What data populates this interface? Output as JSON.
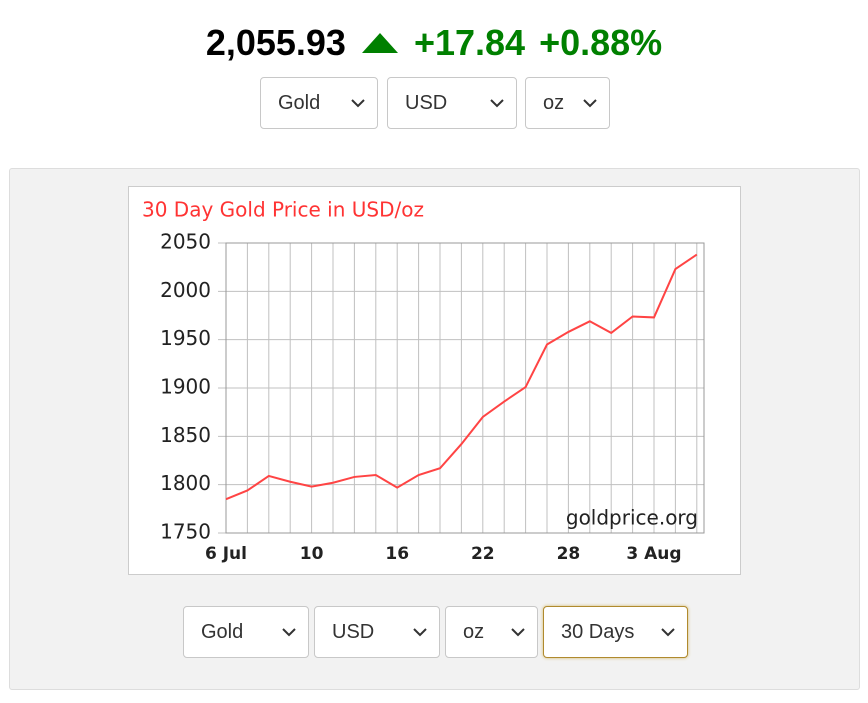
{
  "header": {
    "price": "2,055.93",
    "change": "+17.84",
    "change_percent": "+0.88%"
  },
  "top_selects": [
    "Gold",
    "USD",
    "oz"
  ],
  "bottom_selects": [
    "Gold",
    "USD",
    "oz",
    "30 Days"
  ],
  "chart_data": {
    "type": "line",
    "title": "30 Day Gold Price in USD/oz",
    "watermark": "goldprice.org",
    "categories": [
      "6 Jul",
      null,
      null,
      null,
      "10",
      null,
      null,
      null,
      "16",
      null,
      null,
      null,
      "22",
      null,
      null,
      null,
      "28",
      null,
      null,
      null,
      "3 Aug",
      null,
      null
    ],
    "series": [
      {
        "color": "#ff4444",
        "values": [
          1785,
          1794,
          1809,
          1803,
          1798,
          1802,
          1808,
          1810,
          1797,
          1810,
          1817,
          1842,
          1870,
          1886,
          1901,
          1945,
          1958,
          1969,
          1957,
          1974,
          1973,
          2023,
          2038
        ]
      }
    ],
    "ylim": [
      1750,
      2050
    ],
    "yticks": [
      1750,
      1800,
      1850,
      1900,
      1950,
      2000,
      2050
    ],
    "grid": true
  }
}
